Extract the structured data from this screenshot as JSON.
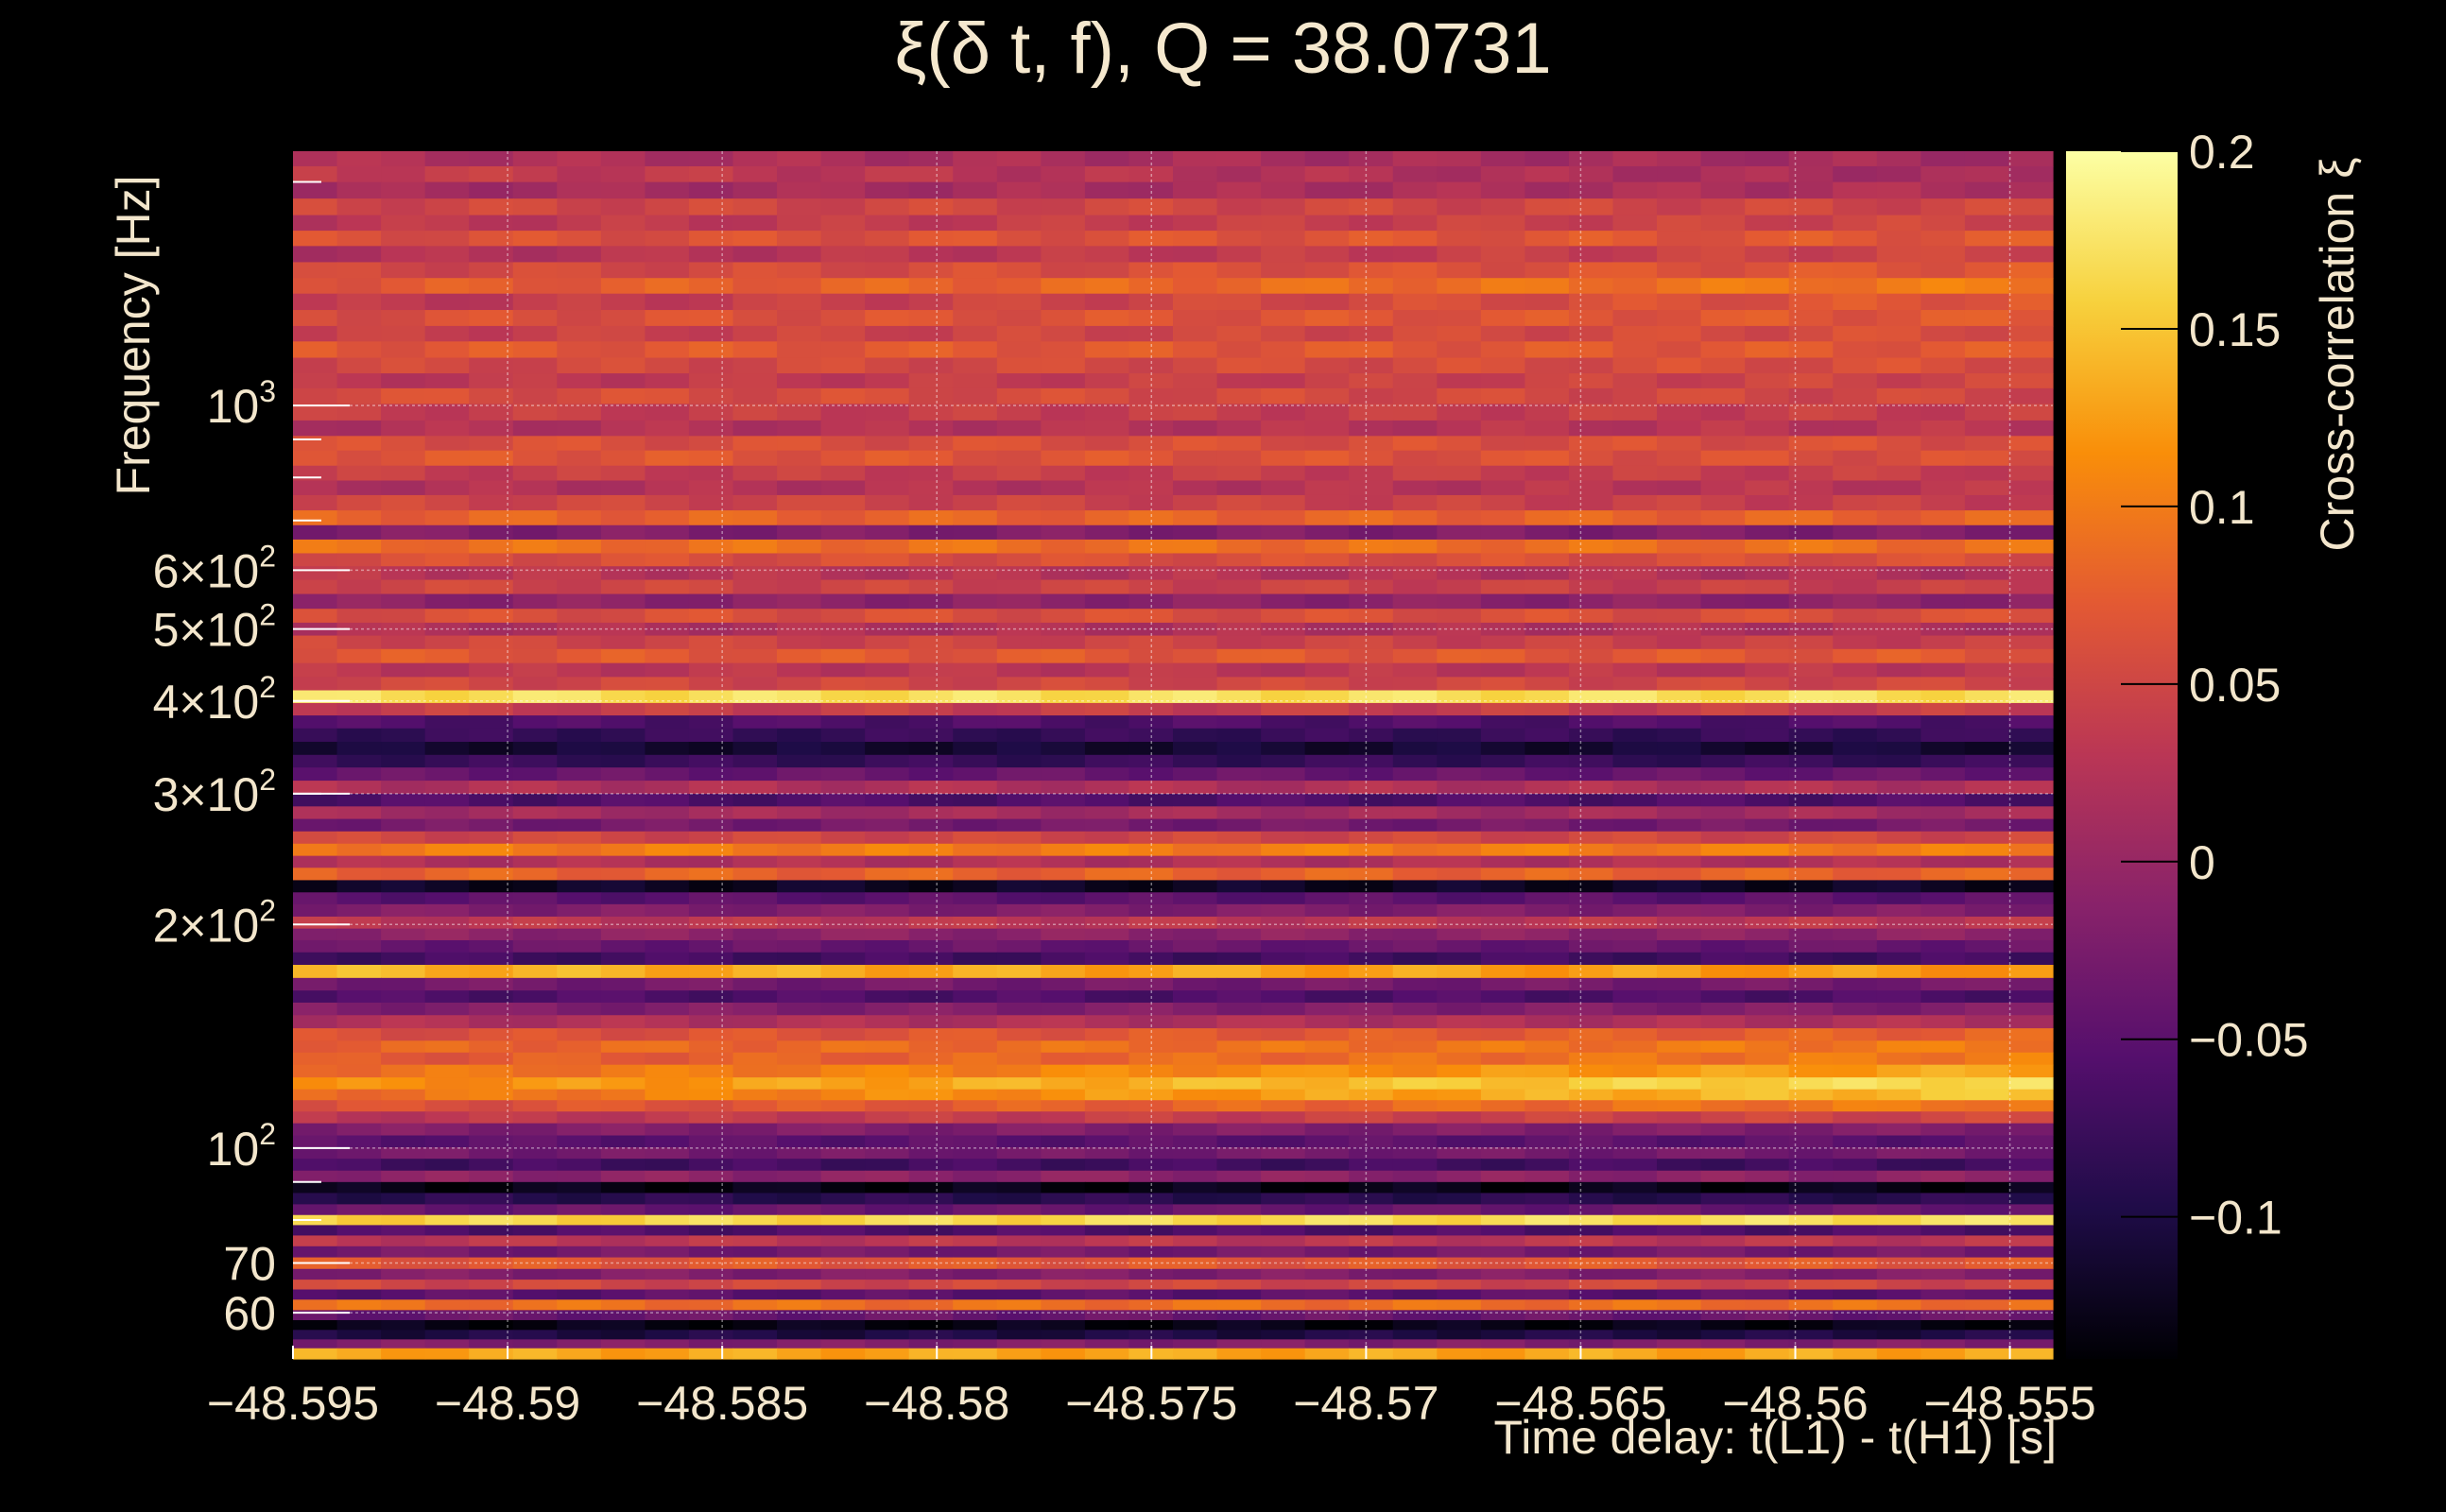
{
  "title": "ξ(δ t, f), Q = 38.0731",
  "colors": {
    "background": "#000000",
    "text": "#f3e6cc",
    "grid": "#ffffff",
    "colormap": [
      "#000004",
      "#1f0c48",
      "#550f6d",
      "#88226a",
      "#ba3655",
      "#e35933",
      "#f98e09",
      "#f7d13d",
      "#fcffa4"
    ],
    "colormap_name": "inferno"
  },
  "chart_data": {
    "type": "heatmap",
    "title": "ξ(δ t, f), Q = 38.0731",
    "xlabel": "Time delay: t(L1) - t(H1) [s]",
    "ylabel": "Frequency [Hz]",
    "colorbar_label": "Cross-correlation ξ",
    "xlim": [
      -48.595,
      -48.554
    ],
    "ylim": [
      52,
      2200
    ],
    "yscale": "log",
    "x_ticks": [
      "−48.595",
      "−48.59",
      "−48.585",
      "−48.58",
      "−48.575",
      "−48.57",
      "−48.565",
      "−48.56",
      "−48.555"
    ],
    "x_tick_values": [
      -48.595,
      -48.59,
      -48.585,
      -48.58,
      -48.575,
      -48.57,
      -48.565,
      -48.56,
      -48.555
    ],
    "y_tick_labels": [
      {
        "label": "10³",
        "base": "10",
        "exp": "3",
        "value": 1000
      },
      {
        "label": "6×10²",
        "base": "6×10",
        "exp": "2",
        "value": 600
      },
      {
        "label": "5×10²",
        "base": "5×10",
        "exp": "2",
        "value": 500
      },
      {
        "label": "4×10²",
        "base": "4×10",
        "exp": "2",
        "value": 400
      },
      {
        "label": "3×10²",
        "base": "3×10",
        "exp": "2",
        "value": 300
      },
      {
        "label": "2×10²",
        "base": "2×10",
        "exp": "2",
        "value": 200
      },
      {
        "label": "10²",
        "base": "10",
        "exp": "2",
        "value": 100
      },
      {
        "label": "70",
        "base": "70",
        "exp": "",
        "value": 70
      },
      {
        "label": "60",
        "base": "60",
        "exp": "",
        "value": 60
      }
    ],
    "colorbar_range": [
      -0.14,
      0.2
    ],
    "colorbar_ticks": [
      "0.2",
      "0.15",
      "0.1",
      "0.05",
      "0",
      "−0.05",
      "−0.1"
    ],
    "colorbar_tick_values": [
      0.2,
      0.15,
      0.1,
      0.05,
      0,
      -0.05,
      -0.1
    ],
    "grid": true,
    "bands": [
      {
        "f_hz": 2150,
        "xi": 0.02,
        "slope": -0.01
      },
      {
        "f_hz": 2050,
        "xi": 0.04,
        "slope": -0.03
      },
      {
        "f_hz": 1950,
        "xi": 0.01,
        "slope": 0.01
      },
      {
        "f_hz": 1850,
        "xi": 0.05,
        "slope": 0.0
      },
      {
        "f_hz": 1760,
        "xi": 0.03,
        "slope": 0.02
      },
      {
        "f_hz": 1680,
        "xi": 0.06,
        "slope": 0.01
      },
      {
        "f_hz": 1600,
        "xi": 0.02,
        "slope": 0.03
      },
      {
        "f_hz": 1520,
        "xi": 0.05,
        "slope": 0.02
      },
      {
        "f_hz": 1450,
        "xi": 0.07,
        "slope": 0.03
      },
      {
        "f_hz": 1380,
        "xi": 0.03,
        "slope": 0.04
      },
      {
        "f_hz": 1310,
        "xi": 0.06,
        "slope": 0.01
      },
      {
        "f_hz": 1250,
        "xi": 0.04,
        "slope": 0.02
      },
      {
        "f_hz": 1190,
        "xi": 0.07,
        "slope": 0.0
      },
      {
        "f_hz": 1130,
        "xi": 0.05,
        "slope": 0.01
      },
      {
        "f_hz": 1080,
        "xi": 0.03,
        "slope": 0.02
      },
      {
        "f_hz": 1030,
        "xi": 0.06,
        "slope": -0.01
      },
      {
        "f_hz": 980,
        "xi": 0.04,
        "slope": 0.0
      },
      {
        "f_hz": 930,
        "xi": 0.02,
        "slope": 0.01
      },
      {
        "f_hz": 890,
        "xi": 0.06,
        "slope": 0.0
      },
      {
        "f_hz": 850,
        "xi": 0.07,
        "slope": -0.01
      },
      {
        "f_hz": 810,
        "xi": 0.04,
        "slope": 0.0
      },
      {
        "f_hz": 775,
        "xi": 0.02,
        "slope": 0.01
      },
      {
        "f_hz": 740,
        "xi": 0.05,
        "slope": -0.01
      },
      {
        "f_hz": 705,
        "xi": 0.08,
        "slope": 0.0
      },
      {
        "f_hz": 675,
        "xi": -0.02,
        "slope": 0.0
      },
      {
        "f_hz": 645,
        "xi": 0.09,
        "slope": 0.0
      },
      {
        "f_hz": 620,
        "xi": 0.06,
        "slope": 0.0
      },
      {
        "f_hz": 595,
        "xi": 0.03,
        "slope": -0.01
      },
      {
        "f_hz": 570,
        "xi": 0.05,
        "slope": -0.01
      },
      {
        "f_hz": 545,
        "xi": -0.01,
        "slope": 0.0
      },
      {
        "f_hz": 520,
        "xi": 0.06,
        "slope": 0.0
      },
      {
        "f_hz": 500,
        "xi": 0.02,
        "slope": 0.0
      },
      {
        "f_hz": 480,
        "xi": 0.05,
        "slope": -0.01
      },
      {
        "f_hz": 460,
        "xi": 0.07,
        "slope": 0.0
      },
      {
        "f_hz": 440,
        "xi": 0.03,
        "slope": 0.0
      },
      {
        "f_hz": 422,
        "xi": 0.05,
        "slope": 0.0
      },
      {
        "f_hz": 405,
        "xi": 0.17,
        "slope": 0.0
      },
      {
        "f_hz": 390,
        "xi": 0.04,
        "slope": 0.0
      },
      {
        "f_hz": 375,
        "xi": -0.06,
        "slope": 0.0
      },
      {
        "f_hz": 360,
        "xi": -0.08,
        "slope": 0.0
      },
      {
        "f_hz": 345,
        "xi": -0.11,
        "slope": 0.0
      },
      {
        "f_hz": 332,
        "xi": -0.08,
        "slope": 0.0
      },
      {
        "f_hz": 319,
        "xi": -0.04,
        "slope": 0.0
      },
      {
        "f_hz": 306,
        "xi": 0.02,
        "slope": 0.0
      },
      {
        "f_hz": 294,
        "xi": -0.06,
        "slope": 0.0
      },
      {
        "f_hz": 283,
        "xi": 0.01,
        "slope": 0.0
      },
      {
        "f_hz": 272,
        "xi": -0.03,
        "slope": 0.0
      },
      {
        "f_hz": 262,
        "xi": 0.05,
        "slope": 0.0
      },
      {
        "f_hz": 252,
        "xi": 0.1,
        "slope": 0.0
      },
      {
        "f_hz": 243,
        "xi": 0.02,
        "slope": 0.0
      },
      {
        "f_hz": 234,
        "xi": 0.08,
        "slope": 0.0
      },
      {
        "f_hz": 225,
        "xi": -0.12,
        "slope": 0.0
      },
      {
        "f_hz": 217,
        "xi": -0.05,
        "slope": 0.0
      },
      {
        "f_hz": 209,
        "xi": -0.02,
        "slope": 0.0
      },
      {
        "f_hz": 201,
        "xi": 0.03,
        "slope": 0.0
      },
      {
        "f_hz": 194,
        "xi": -0.01,
        "slope": 0.0
      },
      {
        "f_hz": 187,
        "xi": -0.04,
        "slope": 0.0
      },
      {
        "f_hz": 180,
        "xi": -0.07,
        "slope": 0.0
      },
      {
        "f_hz": 173,
        "xi": 0.14,
        "slope": -0.02
      },
      {
        "f_hz": 166,
        "xi": -0.03,
        "slope": 0.0
      },
      {
        "f_hz": 160,
        "xi": -0.06,
        "slope": 0.0
      },
      {
        "f_hz": 154,
        "xi": -0.02,
        "slope": 0.0
      },
      {
        "f_hz": 148,
        "xi": 0.02,
        "slope": 0.0
      },
      {
        "f_hz": 142,
        "xi": 0.06,
        "slope": 0.02
      },
      {
        "f_hz": 137,
        "xi": 0.08,
        "slope": 0.02
      },
      {
        "f_hz": 132,
        "xi": 0.07,
        "slope": 0.03
      },
      {
        "f_hz": 127,
        "xi": 0.09,
        "slope": 0.04
      },
      {
        "f_hz": 122,
        "xi": 0.11,
        "slope": 0.06
      },
      {
        "f_hz": 118,
        "xi": 0.09,
        "slope": 0.06
      },
      {
        "f_hz": 114,
        "xi": 0.06,
        "slope": 0.04
      },
      {
        "f_hz": 110,
        "xi": 0.03,
        "slope": 0.02
      },
      {
        "f_hz": 106,
        "xi": -0.02,
        "slope": 0.0
      },
      {
        "f_hz": 102,
        "xi": -0.05,
        "slope": 0.0
      },
      {
        "f_hz": 98.5,
        "xi": -0.03,
        "slope": 0.0
      },
      {
        "f_hz": 95,
        "xi": -0.07,
        "slope": 0.0
      },
      {
        "f_hz": 91.5,
        "xi": -0.01,
        "slope": 0.0
      },
      {
        "f_hz": 88.5,
        "xi": -0.13,
        "slope": 0.0
      },
      {
        "f_hz": 85.5,
        "xi": -0.09,
        "slope": 0.0
      },
      {
        "f_hz": 82.5,
        "xi": -0.04,
        "slope": 0.0
      },
      {
        "f_hz": 80,
        "xi": 0.16,
        "slope": 0.01
      },
      {
        "f_hz": 77.5,
        "xi": -0.06,
        "slope": 0.0
      },
      {
        "f_hz": 75,
        "xi": 0.03,
        "slope": 0.0
      },
      {
        "f_hz": 72.5,
        "xi": -0.03,
        "slope": 0.0
      },
      {
        "f_hz": 70,
        "xi": 0.07,
        "slope": 0.0
      },
      {
        "f_hz": 67.5,
        "xi": -0.02,
        "slope": 0.0
      },
      {
        "f_hz": 65.5,
        "xi": 0.05,
        "slope": 0.0
      },
      {
        "f_hz": 63.5,
        "xi": -0.05,
        "slope": 0.0
      },
      {
        "f_hz": 61.5,
        "xi": 0.09,
        "slope": 0.0
      },
      {
        "f_hz": 59.5,
        "xi": -0.04,
        "slope": 0.0
      },
      {
        "f_hz": 57.8,
        "xi": -0.13,
        "slope": 0.0
      },
      {
        "f_hz": 56,
        "xi": -0.1,
        "slope": 0.0
      },
      {
        "f_hz": 54.5,
        "xi": -0.02,
        "slope": 0.0
      },
      {
        "f_hz": 53,
        "xi": 0.13,
        "slope": 0.0
      }
    ]
  }
}
